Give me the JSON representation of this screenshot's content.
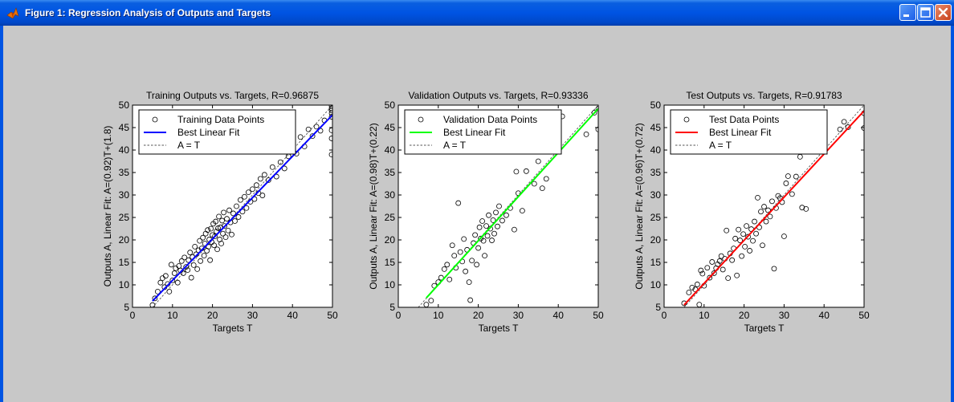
{
  "window": {
    "title": "Figure 1: Regression Analysis of Outputs and Targets",
    "title_bar_color": "#0054e3",
    "icons": [
      "matlab-icon",
      "minimize-icon",
      "maximize-icon",
      "close-icon"
    ]
  },
  "chart_data": [
    {
      "type": "scatter",
      "title": "Training Outputs vs. Targets, R=0.96875",
      "xlabel": "Targets T",
      "ylabel": "Outputs A,  Linear Fit: A=(0.92)T+(1.8)",
      "xlim": [
        0,
        50
      ],
      "ylim": [
        5,
        50
      ],
      "xticks": [
        "0",
        "10",
        "20",
        "30",
        "40",
        "50"
      ],
      "yticks": [
        "5",
        "10",
        "15",
        "20",
        "25",
        "30",
        "35",
        "40",
        "45",
        "50"
      ],
      "fit_slope": 0.92,
      "fit_intercept": 1.8,
      "fit_color": "#0000ff",
      "fit_x_range": [
        5,
        50
      ],
      "legend_position": "top-left",
      "legend": [
        "Training Data Points",
        "Best Linear Fit",
        "A = T"
      ],
      "points": [
        [
          5,
          5.5
        ],
        [
          5.6,
          7
        ],
        [
          6.3,
          8.5
        ],
        [
          7,
          10.5
        ],
        [
          7.5,
          11.5
        ],
        [
          8,
          9.5
        ],
        [
          8.3,
          12
        ],
        [
          8.8,
          10.2
        ],
        [
          9.2,
          8.5
        ],
        [
          9.7,
          14.5
        ],
        [
          10,
          11
        ],
        [
          10.5,
          12.6
        ],
        [
          10.8,
          13.7
        ],
        [
          11.3,
          10.5
        ],
        [
          11.6,
          14.2
        ],
        [
          12,
          13.2
        ],
        [
          12.3,
          15.3
        ],
        [
          12.7,
          12.6
        ],
        [
          13,
          16.1
        ],
        [
          13.4,
          14
        ],
        [
          13.8,
          13.3
        ],
        [
          14,
          15.5
        ],
        [
          14.4,
          17.2
        ],
        [
          14.7,
          11.6
        ],
        [
          15,
          16.2
        ],
        [
          15.3,
          14.4
        ],
        [
          15.6,
          18.5
        ],
        [
          15.9,
          16.8
        ],
        [
          16.2,
          13.5
        ],
        [
          16.5,
          17.7
        ],
        [
          16.8,
          19.8
        ],
        [
          17,
          15.3
        ],
        [
          17.3,
          18.1
        ],
        [
          17.6,
          20.5
        ],
        [
          17.9,
          16.5
        ],
        [
          18.1,
          19.2
        ],
        [
          18.3,
          21.4
        ],
        [
          18.6,
          17.6
        ],
        [
          18.8,
          22.2
        ],
        [
          19,
          18.5
        ],
        [
          19.2,
          20.1
        ],
        [
          19.4,
          15.5
        ],
        [
          19.6,
          22.5
        ],
        [
          19.8,
          19.5
        ],
        [
          20,
          21.1
        ],
        [
          20.2,
          23.6
        ],
        [
          20.4,
          18.8
        ],
        [
          20.6,
          20.8
        ],
        [
          20.8,
          24.1
        ],
        [
          21,
          21.9
        ],
        [
          21.2,
          17.9
        ],
        [
          21.4,
          22.6
        ],
        [
          21.6,
          25.2
        ],
        [
          21.8,
          20.1
        ],
        [
          22,
          22.8
        ],
        [
          22.2,
          19.2
        ],
        [
          22.4,
          24.3
        ],
        [
          22.6,
          21.4
        ],
        [
          22.8,
          26.1
        ],
        [
          23,
          23.1
        ],
        [
          23.3,
          20.6
        ],
        [
          23.6,
          24.7
        ],
        [
          23.9,
          22.1
        ],
        [
          24.2,
          26.6
        ],
        [
          24.5,
          23.9
        ],
        [
          24.8,
          21.2
        ],
        [
          25.2,
          25.9
        ],
        [
          25.6,
          24.2
        ],
        [
          26,
          27.5
        ],
        [
          26.5,
          25.1
        ],
        [
          27,
          28.9
        ],
        [
          27.5,
          26.3
        ],
        [
          28,
          29.6
        ],
        [
          28.5,
          27.1
        ],
        [
          29,
          30.6
        ],
        [
          29.5,
          28.5
        ],
        [
          30,
          31.3
        ],
        [
          30.5,
          29.1
        ],
        [
          31,
          32.2
        ],
        [
          31.5,
          30.4
        ],
        [
          32,
          33.6
        ],
        [
          32.5,
          29.9
        ],
        [
          33,
          34.5
        ],
        [
          34,
          33.3
        ],
        [
          35,
          36.2
        ],
        [
          36,
          34.1
        ],
        [
          37,
          37.3
        ],
        [
          38,
          35.9
        ],
        [
          39,
          38.6
        ],
        [
          40,
          41.8
        ],
        [
          41,
          39.2
        ],
        [
          42,
          42.9
        ],
        [
          43,
          40.8
        ],
        [
          44,
          44.6
        ],
        [
          45,
          43.1
        ],
        [
          46,
          45.2
        ],
        [
          47,
          44.3
        ],
        [
          48,
          46.6
        ],
        [
          49.8,
          39
        ],
        [
          49.8,
          42.6
        ],
        [
          49.8,
          44.4
        ],
        [
          49.8,
          47.4
        ],
        [
          49.8,
          48.2
        ],
        [
          49.8,
          48.8
        ],
        [
          49.8,
          49.3
        ],
        [
          49.8,
          49.8
        ]
      ]
    },
    {
      "type": "scatter",
      "title": "Validation Outputs vs. Targets, R=0.93336",
      "xlabel": "Targets T",
      "ylabel": "Outputs A,  Linear Fit: A=(0.98)T+(0.22)",
      "xlim": [
        0,
        50
      ],
      "ylim": [
        5,
        50
      ],
      "xticks": [
        "0",
        "10",
        "20",
        "30",
        "40",
        "50"
      ],
      "yticks": [
        "5",
        "10",
        "15",
        "20",
        "25",
        "30",
        "35",
        "40",
        "45",
        "50"
      ],
      "fit_slope": 0.98,
      "fit_intercept": 0.22,
      "fit_color": "#00ff00",
      "fit_x_range": [
        7,
        50
      ],
      "legend_position": "top-left",
      "legend": [
        "Validation Data Points",
        "Best Linear Fit",
        "A = T"
      ],
      "points": [
        [
          7,
          5.6
        ],
        [
          8.2,
          6.5
        ],
        [
          9,
          9.8
        ],
        [
          10,
          10.6
        ],
        [
          10.7,
          11.6
        ],
        [
          11.5,
          13.5
        ],
        [
          12.2,
          14.5
        ],
        [
          12.8,
          11.2
        ],
        [
          13.5,
          18.8
        ],
        [
          14,
          16.5
        ],
        [
          14.4,
          13.8
        ],
        [
          15,
          28.2
        ],
        [
          15.5,
          17.3
        ],
        [
          16,
          15.2
        ],
        [
          16.4,
          20.2
        ],
        [
          16.8,
          13
        ],
        [
          17.2,
          17.8
        ],
        [
          17.7,
          10.6
        ],
        [
          18,
          6.6
        ],
        [
          18.4,
          15.4
        ],
        [
          18.8,
          19.3
        ],
        [
          19.2,
          21.1
        ],
        [
          19.6,
          14.5
        ],
        [
          20,
          18.2
        ],
        [
          20.3,
          22.8
        ],
        [
          20.6,
          20.3
        ],
        [
          21,
          24.2
        ],
        [
          21.3,
          19.8
        ],
        [
          21.6,
          16.5
        ],
        [
          22,
          23.1
        ],
        [
          22.3,
          20.9
        ],
        [
          22.6,
          25.5
        ],
        [
          23,
          22.5
        ],
        [
          23.4,
          19.9
        ],
        [
          23.7,
          24.4
        ],
        [
          24,
          21.4
        ],
        [
          24.4,
          26.1
        ],
        [
          24.8,
          23
        ],
        [
          25.2,
          27.5
        ],
        [
          26,
          24.3
        ],
        [
          27,
          25.5
        ],
        [
          28,
          27.1
        ],
        [
          29,
          22.3
        ],
        [
          29.5,
          35.2
        ],
        [
          30,
          30.4
        ],
        [
          31,
          26.5
        ],
        [
          32,
          35.3
        ],
        [
          34,
          32.5
        ],
        [
          35,
          37.5
        ],
        [
          36,
          31.5
        ],
        [
          37,
          33.6
        ],
        [
          41,
          47.5
        ],
        [
          47,
          43.5
        ],
        [
          49,
          48.3
        ],
        [
          50,
          49.2
        ],
        [
          50,
          44.6
        ]
      ]
    },
    {
      "type": "scatter",
      "title": "Test Outputs vs. Targets, R=0.91783",
      "xlabel": "Targets T",
      "ylabel": "Outputs A,  Linear Fit: A=(0.96)T+(0.72)",
      "xlim": [
        0,
        50
      ],
      "ylim": [
        5,
        50
      ],
      "xticks": [
        "0",
        "10",
        "20",
        "30",
        "40",
        "50"
      ],
      "yticks": [
        "5",
        "10",
        "15",
        "20",
        "25",
        "30",
        "35",
        "40",
        "45",
        "50"
      ],
      "fit_slope": 0.96,
      "fit_intercept": 0.72,
      "fit_color": "#ff0000",
      "fit_x_range": [
        5,
        50
      ],
      "legend_position": "top-left",
      "legend": [
        "Test Data Points",
        "Best Linear Fit",
        "A = T"
      ],
      "points": [
        [
          5,
          5.9
        ],
        [
          6.2,
          8.3
        ],
        [
          7,
          9.4
        ],
        [
          7.8,
          9
        ],
        [
          8.3,
          10.1
        ],
        [
          8.8,
          5.6
        ],
        [
          9.2,
          13.2
        ],
        [
          9.6,
          12.5
        ],
        [
          10,
          9.8
        ],
        [
          10.8,
          13.8
        ],
        [
          11.4,
          11.6
        ],
        [
          12,
          15.1
        ],
        [
          12.5,
          12.6
        ],
        [
          13,
          13.7
        ],
        [
          13.4,
          14.6
        ],
        [
          13.9,
          15.3
        ],
        [
          14.3,
          16.4
        ],
        [
          14.7,
          13.4
        ],
        [
          15.2,
          15.8
        ],
        [
          15.6,
          22.1
        ],
        [
          16,
          11.5
        ],
        [
          16.5,
          17
        ],
        [
          17,
          15.5
        ],
        [
          17.4,
          18.1
        ],
        [
          17.8,
          20.3
        ],
        [
          18.2,
          12.1
        ],
        [
          18.6,
          22.3
        ],
        [
          19,
          19.9
        ],
        [
          19.4,
          16.4
        ],
        [
          19.8,
          21.3
        ],
        [
          20.2,
          18.5
        ],
        [
          20.6,
          23.1
        ],
        [
          21,
          20.7
        ],
        [
          21.4,
          17.6
        ],
        [
          21.8,
          22.4
        ],
        [
          22.2,
          19.8
        ],
        [
          22.6,
          24.1
        ],
        [
          23,
          21.4
        ],
        [
          23.4,
          29.4
        ],
        [
          23.8,
          22.8
        ],
        [
          24.2,
          26.3
        ],
        [
          24.6,
          18.8
        ],
        [
          25,
          27.4
        ],
        [
          25.5,
          24.1
        ],
        [
          26,
          26.6
        ],
        [
          26.5,
          25.2
        ],
        [
          27,
          28.6
        ],
        [
          27.5,
          13.6
        ],
        [
          28,
          27.1
        ],
        [
          28.5,
          29.8
        ],
        [
          29,
          29.3
        ],
        [
          29.5,
          28.4
        ],
        [
          30,
          20.8
        ],
        [
          30.5,
          32.6
        ],
        [
          31,
          34.2
        ],
        [
          32,
          30.2
        ],
        [
          33,
          34.1
        ],
        [
          34,
          38.5
        ],
        [
          34.5,
          27.2
        ],
        [
          35.5,
          26.9
        ],
        [
          37,
          42.2
        ],
        [
          44,
          44.6
        ],
        [
          45,
          46.3
        ],
        [
          46,
          45.1
        ],
        [
          50,
          48.2
        ],
        [
          50,
          44.9
        ]
      ]
    }
  ]
}
